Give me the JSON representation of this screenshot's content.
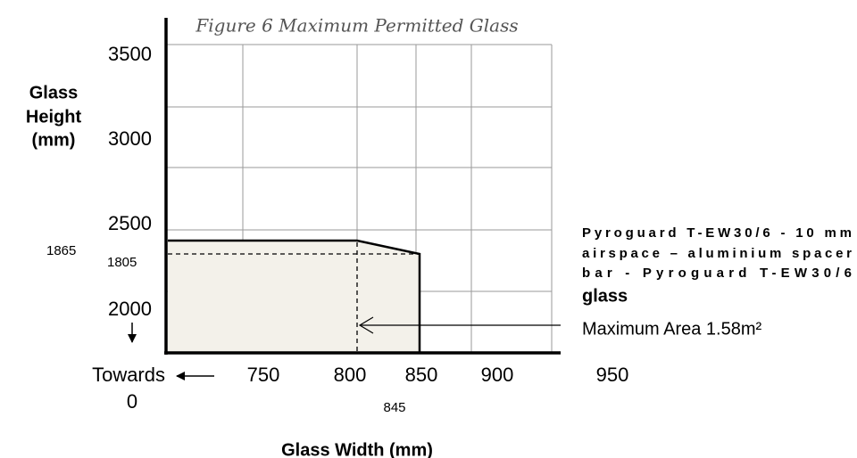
{
  "figure": {
    "title": "Figure 6  Maximum Permitted Glass",
    "y_axis": {
      "label_lines": [
        "Glass",
        "Height",
        "(mm)"
      ],
      "ticks": [
        "3500",
        "3000",
        "2500",
        "2000"
      ]
    },
    "x_axis": {
      "label": "Glass Width (mm)",
      "ticks": [
        "750",
        "800",
        "850",
        "900",
        "950"
      ]
    },
    "origin_note": {
      "lines": [
        "Towards",
        "0"
      ]
    },
    "markers": {
      "height_full": "1865",
      "height_reduced": "1805",
      "width_reduced": "845"
    },
    "legend": {
      "lines": [
        "Pyroguard T-EW30/6 - 10 mm",
        "airspace – aluminium spacer",
        "bar - Pyroguard T-EW30/6"
      ],
      "last_line": "glass",
      "area": "Maximum Area 1.58m²"
    }
  }
}
